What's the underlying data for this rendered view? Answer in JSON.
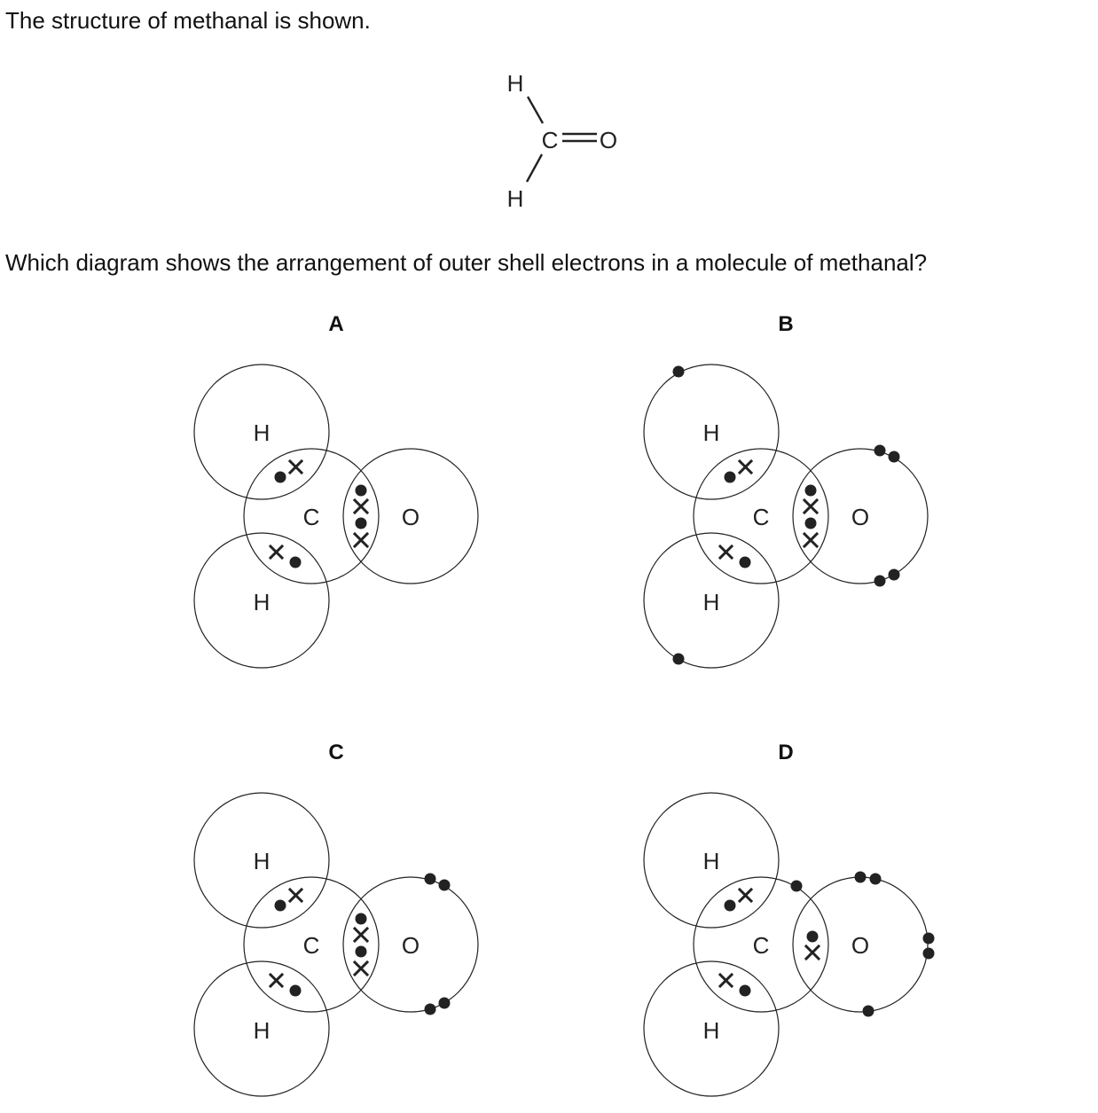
{
  "question": {
    "stem_line_1": "The structure of methanal is shown.",
    "stem_line_2": "Which diagram shows the arrangement of outer shell electrons in a molecule of methanal?"
  },
  "structure": {
    "atoms": {
      "h_top": "H",
      "carbon": "C",
      "oxygen": "O",
      "h_bottom": "H"
    }
  },
  "options": [
    {
      "label": "A",
      "atoms": {
        "h_top": "H",
        "carbon": "C",
        "oxygen": "O",
        "h_bottom": "H"
      }
    },
    {
      "label": "B",
      "atoms": {
        "h_top": "H",
        "carbon": "C",
        "oxygen": "O",
        "h_bottom": "H"
      }
    },
    {
      "label": "C",
      "atoms": {
        "h_top": "H",
        "carbon": "C",
        "oxygen": "O",
        "h_bottom": "H"
      }
    },
    {
      "label": "D",
      "atoms": {
        "h_top": "H",
        "carbon": "C",
        "oxygen": "O",
        "h_bottom": "H"
      }
    }
  ]
}
